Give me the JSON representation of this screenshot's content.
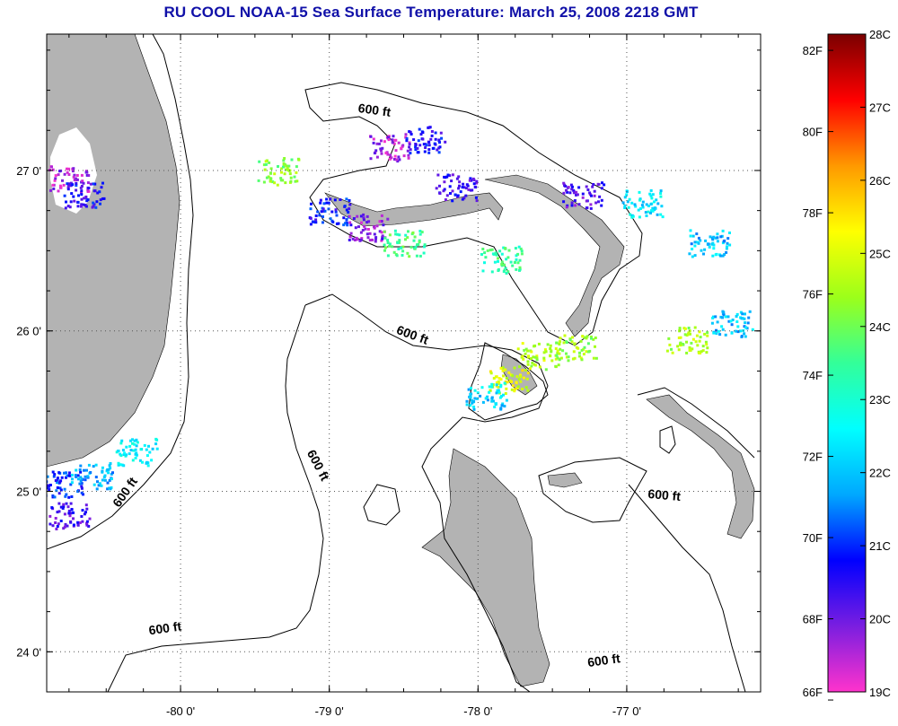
{
  "title": "RU COOL  NOAA-15  Sea Surface Temperature:  March 25, 2008 2218 GMT",
  "map": {
    "lon_range": [
      -80.9,
      -76.1
    ],
    "lat_range": [
      23.75,
      27.85
    ],
    "x_ticks": [
      {
        "value": -80,
        "label": "-80 0'"
      },
      {
        "value": -79,
        "label": "-79 0'"
      },
      {
        "value": -78,
        "label": "-78 0'"
      },
      {
        "value": -77,
        "label": "-77 0'"
      }
    ],
    "y_ticks": [
      {
        "value": 27,
        "label": "27 0'"
      },
      {
        "value": 26,
        "label": "26 0'"
      },
      {
        "value": 25,
        "label": "25 0'"
      },
      {
        "value": 24,
        "label": "24 0'"
      }
    ],
    "land_color": "#b3b3b3",
    "contour_labels": [
      {
        "text": "600 ft",
        "lon": -78.7,
        "lat": 27.35,
        "rotation": 8
      },
      {
        "text": "600 ft",
        "lon": -78.45,
        "lat": 25.95,
        "rotation": 20
      },
      {
        "text": "600 ft",
        "lon": -79.1,
        "lat": 25.15,
        "rotation": 62
      },
      {
        "text": "600 ft",
        "lon": -80.35,
        "lat": 24.98,
        "rotation": -55
      },
      {
        "text": "600 ft",
        "lon": -76.75,
        "lat": 24.95,
        "rotation": 5
      },
      {
        "text": "600 ft",
        "lon": -80.1,
        "lat": 24.12,
        "rotation": -8
      },
      {
        "text": "600 ft",
        "lon": -77.15,
        "lat": 23.92,
        "rotation": -8
      }
    ]
  },
  "colorbar": {
    "celsius_range": [
      19,
      28
    ],
    "celsius_labels": [
      "28C",
      "27C",
      "26C",
      "25C",
      "24C",
      "23C",
      "22C",
      "21C",
      "20C",
      "19C"
    ],
    "fahrenheit_labels": [
      "82F",
      "80F",
      "78F",
      "76F",
      "74F",
      "72F",
      "70F",
      "68F",
      "66F"
    ],
    "color_stops": [
      "#ff33cc",
      "#7a1ee0",
      "#0000ff",
      "#00a8ff",
      "#00ffff",
      "#33ff99",
      "#9cff1a",
      "#ffff00",
      "#ff9900",
      "#ff0000",
      "#7a0000"
    ]
  },
  "sst_patches": [
    {
      "lon": -80.75,
      "lat": 26.95,
      "temp": 19.6
    },
    {
      "lon": -80.65,
      "lat": 26.85,
      "temp": 20.6
    },
    {
      "lon": -80.8,
      "lat": 25.05,
      "temp": 21.0
    },
    {
      "lon": -80.6,
      "lat": 25.1,
      "temp": 21.8
    },
    {
      "lon": -80.75,
      "lat": 24.85,
      "temp": 20.3
    },
    {
      "lon": -80.3,
      "lat": 25.25,
      "temp": 22.5
    },
    {
      "lon": -79.0,
      "lat": 26.75,
      "temp": 20.8
    },
    {
      "lon": -78.75,
      "lat": 26.65,
      "temp": 19.8
    },
    {
      "lon": -78.5,
      "lat": 26.55,
      "temp": 23.6
    },
    {
      "lon": -78.6,
      "lat": 27.15,
      "temp": 19.6
    },
    {
      "lon": -78.35,
      "lat": 27.2,
      "temp": 20.6
    },
    {
      "lon": -78.15,
      "lat": 26.9,
      "temp": 20.4
    },
    {
      "lon": -77.3,
      "lat": 26.85,
      "temp": 20.2
    },
    {
      "lon": -77.85,
      "lat": 26.45,
      "temp": 23.4
    },
    {
      "lon": -77.6,
      "lat": 25.85,
      "temp": 24.6
    },
    {
      "lon": -77.8,
      "lat": 25.7,
      "temp": 25.0
    },
    {
      "lon": -77.95,
      "lat": 25.6,
      "temp": 22.2
    },
    {
      "lon": -77.35,
      "lat": 25.9,
      "temp": 24.4
    },
    {
      "lon": -76.6,
      "lat": 25.95,
      "temp": 24.5
    },
    {
      "lon": -76.3,
      "lat": 26.05,
      "temp": 22.0
    },
    {
      "lon": -76.45,
      "lat": 26.55,
      "temp": 22.0
    },
    {
      "lon": -79.35,
      "lat": 27.0,
      "temp": 24.2
    },
    {
      "lon": -76.9,
      "lat": 26.8,
      "temp": 22.3
    }
  ]
}
